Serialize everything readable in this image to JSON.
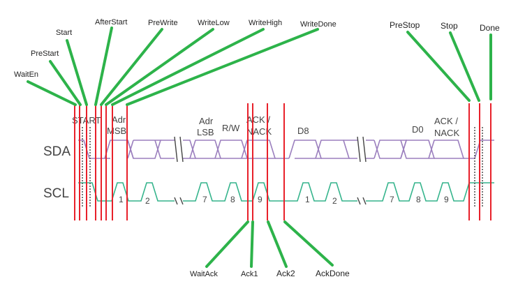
{
  "colors": {
    "sda": "#9b7fbe",
    "scl": "#35b48c",
    "marker": "#e8202a",
    "pointer": "#2db34a",
    "text": "#222222",
    "diagram_text": "#444444",
    "dotted": "#555555"
  },
  "signals": {
    "sda": "SDA",
    "scl": "SCL"
  },
  "annotations": {
    "start": "START",
    "adr_msb": [
      "Adr",
      "MSB"
    ],
    "adr_lsb": [
      "Adr",
      "LSB"
    ],
    "rw": "R/W",
    "ack1": [
      "ACK /",
      "NACK"
    ],
    "d8": "D8",
    "d0": "D0",
    "ack2": [
      "ACK /",
      "NACK"
    ]
  },
  "clock_numbers": [
    "1",
    "2",
    "7",
    "8",
    "9",
    "1",
    "2",
    "7",
    "8",
    "9"
  ],
  "states_top": [
    {
      "id": "waiten",
      "label": "WaitEn"
    },
    {
      "id": "prestart",
      "label": "PreStart"
    },
    {
      "id": "start",
      "label": "Start"
    },
    {
      "id": "afterstart",
      "label": "AfterStart"
    },
    {
      "id": "prewrite",
      "label": "PreWrite"
    },
    {
      "id": "writelow",
      "label": "WriteLow"
    },
    {
      "id": "writehigh",
      "label": "WriteHigh"
    },
    {
      "id": "writedone",
      "label": "WriteDone"
    },
    {
      "id": "prestop",
      "label": "PreStop"
    },
    {
      "id": "stop",
      "label": "Stop"
    },
    {
      "id": "done",
      "label": "Done"
    }
  ],
  "states_bottom": [
    {
      "id": "waitack",
      "label": "WaitAck"
    },
    {
      "id": "ack1",
      "label": "Ack1"
    },
    {
      "id": "ack2",
      "label": "Ack2"
    },
    {
      "id": "ackdone",
      "label": "AckDone"
    }
  ]
}
